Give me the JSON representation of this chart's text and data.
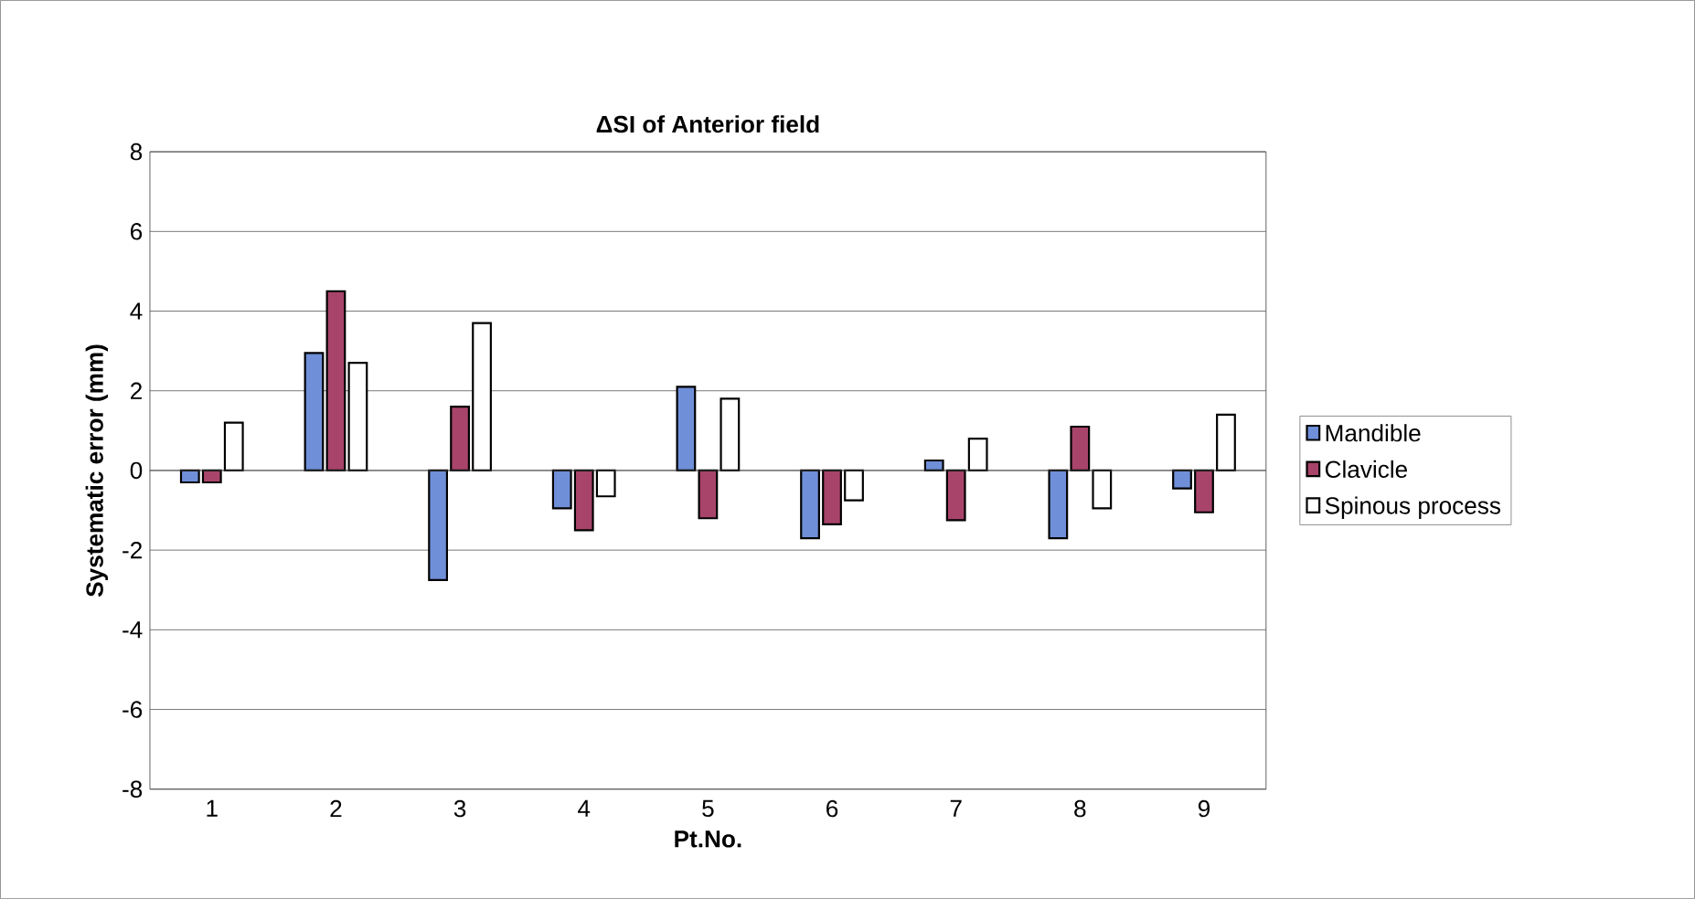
{
  "chart_data": {
    "type": "bar",
    "title": "ΔSI of Anterior field",
    "xlabel": "Pt.No.",
    "ylabel": "Systematic error (mm)",
    "categories": [
      "1",
      "2",
      "3",
      "4",
      "5",
      "6",
      "7",
      "8",
      "9"
    ],
    "series": [
      {
        "name": "Mandible",
        "color": "#6f8fd8",
        "values": [
          -0.3,
          2.95,
          -2.75,
          -0.95,
          2.1,
          -1.7,
          0.25,
          -1.7,
          -0.45
        ]
      },
      {
        "name": "Clavicle",
        "color": "#a8446a",
        "values": [
          -0.3,
          4.5,
          1.6,
          -1.5,
          -1.2,
          -1.35,
          -1.25,
          1.1,
          -1.05
        ]
      },
      {
        "name": "Spinous process",
        "color": "#ffffff",
        "values": [
          1.2,
          2.7,
          3.7,
          -0.65,
          1.8,
          -0.75,
          0.8,
          -0.95,
          1.4
        ]
      }
    ],
    "ylim": [
      -8,
      8
    ],
    "yticks": [
      -8,
      -6,
      -4,
      -2,
      0,
      2,
      4,
      6,
      8
    ],
    "grid": "y",
    "legend": "right"
  }
}
